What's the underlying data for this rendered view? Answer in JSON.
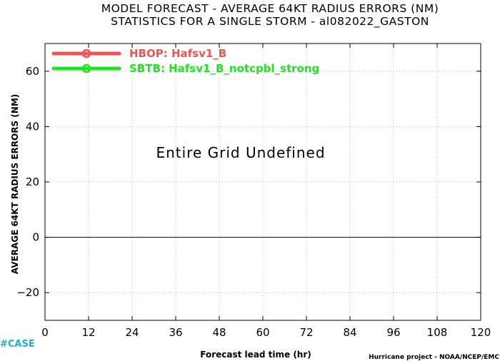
{
  "chart_data": {
    "type": "line",
    "title": "MODEL FORECAST - AVERAGE 64KT RADIUS ERRORS (NM)",
    "subtitle": "STATISTICS FOR A SINGLE STORM - al082022_GASTON",
    "xlabel": "Forecast lead time (hr)",
    "ylabel": "AVERAGE 64KT RADIUS ERRORS (NM)",
    "x_ticks": [
      0,
      12,
      24,
      36,
      48,
      60,
      72,
      84,
      96,
      108,
      120
    ],
    "y_ticks": [
      -20,
      0,
      20,
      40,
      60
    ],
    "xlim": [
      0,
      120
    ],
    "ylim": [
      -30,
      70
    ],
    "grid": true,
    "zero_line": true,
    "legend_position": "top-left",
    "series": [
      {
        "name": "HBOP: Hafsv1_B",
        "color": "#f25252",
        "x": [],
        "y": []
      },
      {
        "name": "SBTB: Hafsv1_B_notcpbl_strong",
        "color": "#1ee61e",
        "x": [],
        "y": []
      }
    ],
    "annotation": "Entire Grid Undefined"
  },
  "footer": {
    "credit": "Hurricane project - NOAA/NCEP/EMC",
    "tag": "#CASE"
  }
}
